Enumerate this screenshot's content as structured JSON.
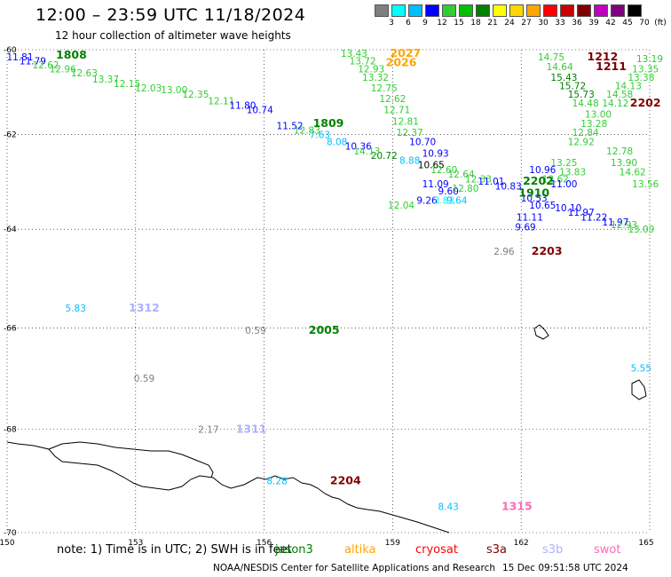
{
  "title": "12:00 – 23:59 UTC 11/18/2024",
  "subtitle": "12 hour collection of altimeter wave heights",
  "scale": {
    "unit": "(ft)",
    "swatches": [
      {
        "label": "3",
        "color": "#7f7f7f"
      },
      {
        "label": "6",
        "color": "#00ffff"
      },
      {
        "label": "9",
        "color": "#00bfff"
      },
      {
        "label": "12",
        "color": "#0000ff"
      },
      {
        "label": "15",
        "color": "#32cd32"
      },
      {
        "label": "18",
        "color": "#00c000"
      },
      {
        "label": "21",
        "color": "#008000"
      },
      {
        "label": "24",
        "color": "#ffff00"
      },
      {
        "label": "27",
        "color": "#ffd700"
      },
      {
        "label": "30",
        "color": "#ffa500"
      },
      {
        "label": "33",
        "color": "#ff0000"
      },
      {
        "label": "36",
        "color": "#cc0000"
      },
      {
        "label": "39",
        "color": "#800000"
      },
      {
        "label": "42",
        "color": "#c000c0"
      },
      {
        "label": "45",
        "color": "#800080"
      },
      {
        "label": "70",
        "color": "#000000"
      }
    ]
  },
  "map": {
    "lon_range": [
      150,
      165
    ],
    "lat_range": [
      -70,
      -60
    ],
    "lon_ticks": [
      150,
      153,
      156,
      159,
      162,
      165
    ],
    "lat_ticks": [
      -60,
      -62,
      -64,
      -66,
      -68,
      -70
    ],
    "values": [
      {
        "t": "11.81",
        "lon": 150.3,
        "lat": -60.2,
        "c": "#0000ff"
      },
      {
        "t": "11.79",
        "lon": 150.6,
        "lat": -60.3,
        "c": "#0000ff"
      },
      {
        "t": "12.62",
        "lon": 150.9,
        "lat": -60.4,
        "c": "#32cd32"
      },
      {
        "t": "12.96",
        "lon": 151.3,
        "lat": -60.5,
        "c": "#32cd32"
      },
      {
        "t": "12.63",
        "lon": 151.8,
        "lat": -60.6,
        "c": "#32cd32"
      },
      {
        "t": "13.37",
        "lon": 152.3,
        "lat": -60.75,
        "c": "#32cd32"
      },
      {
        "t": "12.15",
        "lon": 152.8,
        "lat": -60.85,
        "c": "#32cd32"
      },
      {
        "t": "12.03",
        "lon": 153.3,
        "lat": -60.95,
        "c": "#32cd32"
      },
      {
        "t": "13.00",
        "lon": 153.9,
        "lat": -61.0,
        "c": "#32cd32"
      },
      {
        "t": "12.35",
        "lon": 154.4,
        "lat": -61.1,
        "c": "#32cd32"
      },
      {
        "t": "12.11",
        "lon": 155.0,
        "lat": -61.25,
        "c": "#32cd32"
      },
      {
        "t": "11.80",
        "lon": 155.5,
        "lat": -61.35,
        "c": "#0000ff"
      },
      {
        "t": "10.74",
        "lon": 155.9,
        "lat": -61.45,
        "c": "#0000ff"
      },
      {
        "t": "11.52",
        "lon": 156.6,
        "lat": -61.8,
        "c": "#0000ff"
      },
      {
        "t": "12.83",
        "lon": 157.0,
        "lat": -61.9,
        "c": "#32cd32"
      },
      {
        "t": "7.63",
        "lon": 157.3,
        "lat": -62.0,
        "c": "#00bfff"
      },
      {
        "t": "8.08",
        "lon": 157.7,
        "lat": -62.15,
        "c": "#00bfff"
      },
      {
        "t": "10.36",
        "lon": 158.2,
        "lat": -62.25,
        "c": "#0000ff"
      },
      {
        "t": "20.72",
        "lon": 158.8,
        "lat": -62.45,
        "c": "#008000"
      },
      {
        "t": "14.13",
        "lon": 158.4,
        "lat": -62.35,
        "c": "#32cd32"
      },
      {
        "t": "8.88",
        "lon": 159.4,
        "lat": -62.55,
        "c": "#00bfff"
      },
      {
        "t": "10.65",
        "lon": 159.9,
        "lat": -62.65,
        "c": "#000000"
      },
      {
        "t": "10.93",
        "lon": 160.0,
        "lat": -62.4,
        "c": "#0000ff"
      },
      {
        "t": "10.70",
        "lon": 159.7,
        "lat": -62.15,
        "c": "#0000ff"
      },
      {
        "t": "12.37",
        "lon": 159.4,
        "lat": -61.95,
        "c": "#32cd32"
      },
      {
        "t": "12.81",
        "lon": 159.3,
        "lat": -61.7,
        "c": "#32cd32"
      },
      {
        "t": "12.71",
        "lon": 159.1,
        "lat": -61.45,
        "c": "#32cd32"
      },
      {
        "t": "12.62",
        "lon": 159.0,
        "lat": -61.2,
        "c": "#32cd32"
      },
      {
        "t": "12.75",
        "lon": 158.8,
        "lat": -60.95,
        "c": "#32cd32"
      },
      {
        "t": "13.32",
        "lon": 158.6,
        "lat": -60.7,
        "c": "#32cd32"
      },
      {
        "t": "12.93",
        "lon": 158.5,
        "lat": -60.5,
        "c": "#32cd32"
      },
      {
        "t": "13.72",
        "lon": 158.3,
        "lat": -60.3,
        "c": "#32cd32"
      },
      {
        "t": "13.43",
        "lon": 158.1,
        "lat": -60.1,
        "c": "#32cd32"
      },
      {
        "t": "12.60",
        "lon": 160.2,
        "lat": -62.75,
        "c": "#32cd32"
      },
      {
        "t": "12.64",
        "lon": 160.6,
        "lat": -62.85,
        "c": "#32cd32"
      },
      {
        "t": "11.09",
        "lon": 160.0,
        "lat": -63.05,
        "c": "#0000ff"
      },
      {
        "t": "9.60",
        "lon": 160.3,
        "lat": -63.2,
        "c": "#0000ff"
      },
      {
        "t": "12.80",
        "lon": 160.7,
        "lat": -63.15,
        "c": "#32cd32"
      },
      {
        "t": "12.33",
        "lon": 161.0,
        "lat": -62.95,
        "c": "#32cd32"
      },
      {
        "t": "11.01",
        "lon": 161.3,
        "lat": -63.0,
        "c": "#0000ff"
      },
      {
        "t": "10.83",
        "lon": 161.7,
        "lat": -63.1,
        "c": "#0000ff"
      },
      {
        "t": "9.26",
        "lon": 159.8,
        "lat": -63.4,
        "c": "#0000ff"
      },
      {
        "t": "12.04",
        "lon": 159.2,
        "lat": -63.5,
        "c": "#32cd32"
      },
      {
        "t": "3.83",
        "lon": 160.2,
        "lat": -63.4,
        "c": "#00ffff"
      },
      {
        "t": "9.64",
        "lon": 160.5,
        "lat": -63.4,
        "c": "#00bfff"
      },
      {
        "t": "10.96",
        "lon": 162.5,
        "lat": -62.75,
        "c": "#0000ff"
      },
      {
        "t": "12.62",
        "lon": 162.8,
        "lat": -62.95,
        "c": "#32cd32"
      },
      {
        "t": "11.00",
        "lon": 163.0,
        "lat": -63.05,
        "c": "#0000ff"
      },
      {
        "t": "10.53",
        "lon": 162.3,
        "lat": -63.35,
        "c": "#0000ff"
      },
      {
        "t": "10.65",
        "lon": 162.5,
        "lat": -63.5,
        "c": "#0000ff"
      },
      {
        "t": "10.10",
        "lon": 163.1,
        "lat": -63.55,
        "c": "#0000ff"
      },
      {
        "t": "11.97",
        "lon": 163.4,
        "lat": -63.65,
        "c": "#0000ff"
      },
      {
        "t": "11.22",
        "lon": 163.7,
        "lat": -63.75,
        "c": "#0000ff"
      },
      {
        "t": "11.97",
        "lon": 164.2,
        "lat": -63.85,
        "c": "#0000ff"
      },
      {
        "t": "12.93",
        "lon": 164.4,
        "lat": -63.9,
        "c": "#32cd32"
      },
      {
        "t": "13.09",
        "lon": 164.8,
        "lat": -64.0,
        "c": "#32cd32"
      },
      {
        "t": "11.11",
        "lon": 162.2,
        "lat": -63.75,
        "c": "#0000ff"
      },
      {
        "t": "9.69",
        "lon": 162.1,
        "lat": -63.95,
        "c": "#0000ff"
      },
      {
        "t": "13.25",
        "lon": 163.0,
        "lat": -62.6,
        "c": "#32cd32"
      },
      {
        "t": "13.83",
        "lon": 163.2,
        "lat": -62.8,
        "c": "#32cd32"
      },
      {
        "t": "12.92",
        "lon": 163.4,
        "lat": -62.15,
        "c": "#32cd32"
      },
      {
        "t": "12.84",
        "lon": 163.5,
        "lat": -61.95,
        "c": "#32cd32"
      },
      {
        "t": "13.28",
        "lon": 163.7,
        "lat": -61.75,
        "c": "#32cd32"
      },
      {
        "t": "13.00",
        "lon": 163.8,
        "lat": -61.55,
        "c": "#32cd32"
      },
      {
        "t": "14.48",
        "lon": 163.5,
        "lat": -61.3,
        "c": "#32cd32"
      },
      {
        "t": "15.73",
        "lon": 163.4,
        "lat": -61.1,
        "c": "#008000"
      },
      {
        "t": "15.72",
        "lon": 163.2,
        "lat": -60.9,
        "c": "#008000"
      },
      {
        "t": "15.43",
        "lon": 163.0,
        "lat": -60.7,
        "c": "#008000"
      },
      {
        "t": "14.64",
        "lon": 162.9,
        "lat": -60.45,
        "c": "#32cd32"
      },
      {
        "t": "14.75",
        "lon": 162.7,
        "lat": -60.2,
        "c": "#32cd32"
      },
      {
        "t": "14.12",
        "lon": 164.2,
        "lat": -61.3,
        "c": "#32cd32"
      },
      {
        "t": "14.58",
        "lon": 164.3,
        "lat": -61.1,
        "c": "#32cd32"
      },
      {
        "t": "14.13",
        "lon": 164.5,
        "lat": -60.9,
        "c": "#32cd32"
      },
      {
        "t": "13.38",
        "lon": 164.8,
        "lat": -60.7,
        "c": "#32cd32"
      },
      {
        "t": "13.35",
        "lon": 164.9,
        "lat": -60.5,
        "c": "#32cd32"
      },
      {
        "t": "13.19",
        "lon": 165.0,
        "lat": -60.25,
        "c": "#32cd32"
      },
      {
        "t": "12.78",
        "lon": 164.3,
        "lat": -62.35,
        "c": "#32cd32"
      },
      {
        "t": "13.90",
        "lon": 164.4,
        "lat": -62.6,
        "c": "#32cd32"
      },
      {
        "t": "14.62",
        "lon": 164.6,
        "lat": -62.8,
        "c": "#32cd32"
      },
      {
        "t": "13.56",
        "lon": 164.9,
        "lat": -63.05,
        "c": "#32cd32"
      },
      {
        "t": "5.83",
        "lon": 151.6,
        "lat": -65.6,
        "c": "#00bfff"
      },
      {
        "t": "0.59",
        "lon": 155.8,
        "lat": -66.05,
        "c": "#7f7f7f"
      },
      {
        "t": "0.59",
        "lon": 153.2,
        "lat": -67.0,
        "c": "#7f7f7f"
      },
      {
        "t": "2.17",
        "lon": 154.7,
        "lat": -68.0,
        "c": "#7f7f7f"
      },
      {
        "t": "8.28",
        "lon": 156.3,
        "lat": -69.0,
        "c": "#00bfff"
      },
      {
        "t": "8.43",
        "lon": 160.3,
        "lat": -69.5,
        "c": "#00bfff"
      },
      {
        "t": "2.96",
        "lon": 161.6,
        "lat": -64.45,
        "c": "#7f7f7f"
      },
      {
        "t": "5.55",
        "lon": 164.8,
        "lat": -66.8,
        "c": "#00bfff"
      }
    ],
    "passes": [
      {
        "t": "1808",
        "lon": 151.5,
        "lat": -60.15,
        "c": "#008000"
      },
      {
        "t": "2027",
        "lon": 159.3,
        "lat": -60.1,
        "c": "#ffa500"
      },
      {
        "t": "2026",
        "lon": 159.2,
        "lat": -60.35,
        "c": "#ffa500"
      },
      {
        "t": "1212",
        "lon": 163.9,
        "lat": -60.2,
        "c": "#800000"
      },
      {
        "t": "1211",
        "lon": 164.1,
        "lat": -60.45,
        "c": "#800000"
      },
      {
        "t": "2202",
        "lon": 164.9,
        "lat": -61.3,
        "c": "#800000"
      },
      {
        "t": "1809",
        "lon": 157.5,
        "lat": -61.75,
        "c": "#008000"
      },
      {
        "t": "2202",
        "lon": 162.4,
        "lat": -63.0,
        "c": "#008000"
      },
      {
        "t": "1910",
        "lon": 162.3,
        "lat": -63.25,
        "c": "#008000"
      },
      {
        "t": "2203",
        "lon": 162.6,
        "lat": -64.45,
        "c": "#800000"
      },
      {
        "t": "1312",
        "lon": 153.2,
        "lat": -65.6,
        "c": "#b0b0ff"
      },
      {
        "t": "2005",
        "lon": 157.4,
        "lat": -66.05,
        "c": "#008000"
      },
      {
        "t": "1311",
        "lon": 155.7,
        "lat": -68.0,
        "c": "#b0b0ff"
      },
      {
        "t": "2204",
        "lon": 157.9,
        "lat": -69.0,
        "c": "#800000"
      },
      {
        "t": "1315",
        "lon": 161.9,
        "lat": -69.5,
        "c": "#ff69b4"
      }
    ]
  },
  "note": "note: 1) Time is in UTC; 2) SWH is in feet",
  "legend": [
    {
      "label": "jason3",
      "color": "#008000"
    },
    {
      "label": "altika",
      "color": "#ffa500"
    },
    {
      "label": "cryosat",
      "color": "#ff0000"
    },
    {
      "label": "s3a",
      "color": "#800000"
    },
    {
      "label": "s3b",
      "color": "#b0b0ff"
    },
    {
      "label": "swot",
      "color": "#ff69b4"
    }
  ],
  "footer": "NOAA/NESDIS Center for Satellite Applications and Research",
  "footer_date": "15 Dec 09:51:58 UTC 2024"
}
